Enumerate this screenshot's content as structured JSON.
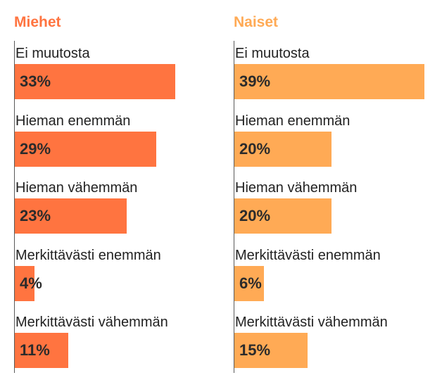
{
  "colors": {
    "men": "#ff7440",
    "women": "#ffaa55",
    "axis": "#5a5a5a",
    "text": "#222222"
  },
  "chart_data": [
    {
      "type": "bar",
      "orientation": "horizontal",
      "title": "Miehet",
      "categories": [
        "Ei muutosta",
        "Hieman enemmän",
        "Hieman vähemmän",
        "Merkittävästi enemmän",
        "Merkittävästi vähemmän"
      ],
      "values": [
        33,
        29,
        23,
        4,
        11
      ],
      "value_labels": [
        "33%",
        "29%",
        "23%",
        "4%",
        "11%"
      ],
      "unit": "%",
      "xlim": [
        0,
        39
      ],
      "grid": false,
      "color": "#ff7440"
    },
    {
      "type": "bar",
      "orientation": "horizontal",
      "title": "Naiset",
      "categories": [
        "Ei muutosta",
        "Hieman enemmän",
        "Hieman vähemmän",
        "Merkittävästi enemmän",
        "Merkittävästi vähemmän"
      ],
      "values": [
        39,
        20,
        20,
        6,
        15
      ],
      "value_labels": [
        "39%",
        "20%",
        "20%",
        "6%",
        "15%"
      ],
      "unit": "%",
      "xlim": [
        0,
        39
      ],
      "grid": false,
      "color": "#ffaa55"
    }
  ]
}
